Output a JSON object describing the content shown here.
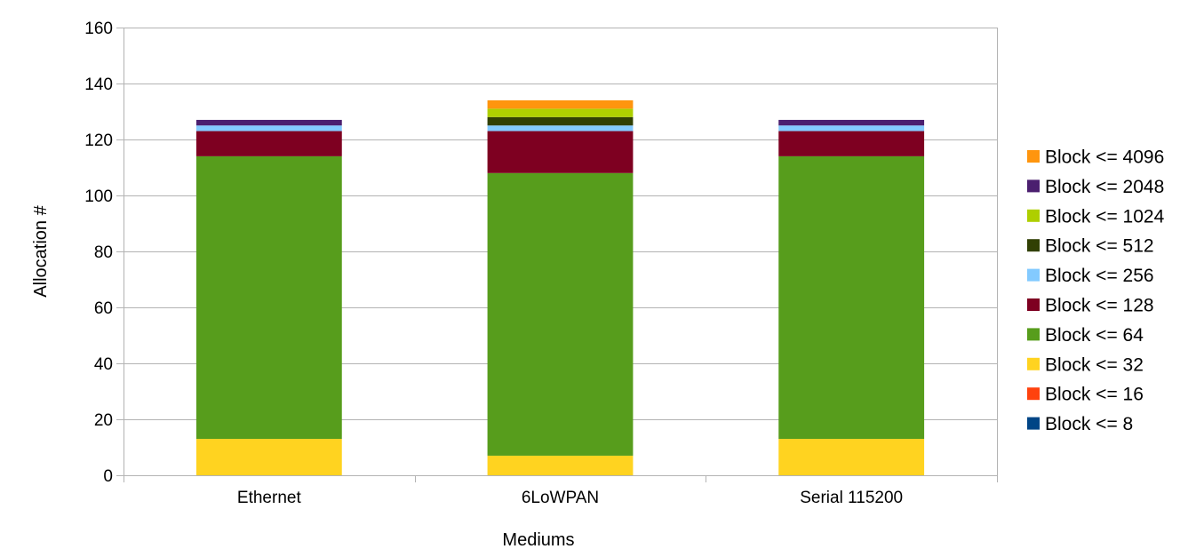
{
  "chart_data": {
    "type": "bar",
    "stacked": true,
    "title": "",
    "xlabel": "Mediums",
    "ylabel": "Allocation #",
    "categories": [
      "Ethernet",
      "6LoWPAN",
      "Serial 115200"
    ],
    "ylim": [
      0,
      160
    ],
    "yticks": [
      0,
      20,
      40,
      60,
      80,
      100,
      120,
      140,
      160
    ],
    "grid": true,
    "legend_position": "right",
    "series": [
      {
        "name": "Block <= 8",
        "color": "#004586",
        "values": [
          0,
          0,
          0
        ]
      },
      {
        "name": "Block <= 16",
        "color": "#ff420e",
        "values": [
          0,
          0,
          0
        ]
      },
      {
        "name": "Block <= 32",
        "color": "#ffd320",
        "values": [
          13,
          7,
          13
        ]
      },
      {
        "name": "Block <= 64",
        "color": "#579d1c",
        "values": [
          101,
          101,
          101
        ]
      },
      {
        "name": "Block <= 128",
        "color": "#7e0021",
        "values": [
          9,
          15,
          9
        ]
      },
      {
        "name": "Block <= 256",
        "color": "#83caff",
        "values": [
          2,
          2,
          2
        ]
      },
      {
        "name": "Block <= 512",
        "color": "#314004",
        "values": [
          0,
          3,
          0
        ]
      },
      {
        "name": "Block <= 1024",
        "color": "#aecf00",
        "values": [
          0,
          3,
          0
        ]
      },
      {
        "name": "Block <= 2048",
        "color": "#4b1f6f",
        "values": [
          2,
          0,
          2
        ]
      },
      {
        "name": "Block <= 4096",
        "color": "#ff950e",
        "values": [
          0,
          3,
          0
        ]
      }
    ]
  }
}
